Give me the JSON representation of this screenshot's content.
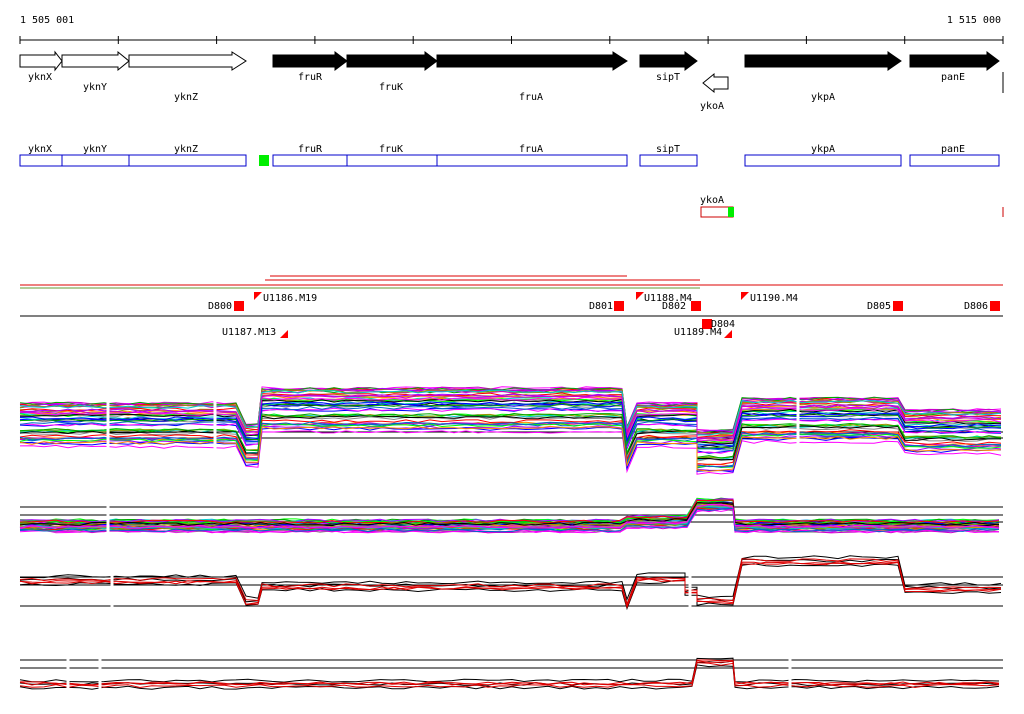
{
  "ruler": {
    "start": "1 505 001",
    "end": "1 515 000"
  },
  "genes": [
    "yknX",
    "yknY",
    "yknZ",
    "fruR",
    "fruK",
    "fruA",
    "sipT",
    "ykoA",
    "ykpA",
    "panE"
  ],
  "gene_boxes": [
    "yknX",
    "yknY",
    "yknZ",
    "fruR",
    "fruK",
    "fruA",
    "sipT",
    "ykpA",
    "panE"
  ],
  "reverse_box": "ykoA",
  "features": [
    "D800",
    "U1186.M19",
    "U1187.M13",
    "D801",
    "U1188.M4",
    "D802",
    "D804",
    "U1189.M4",
    "U1190.M4",
    "D805",
    "D806"
  ]
}
